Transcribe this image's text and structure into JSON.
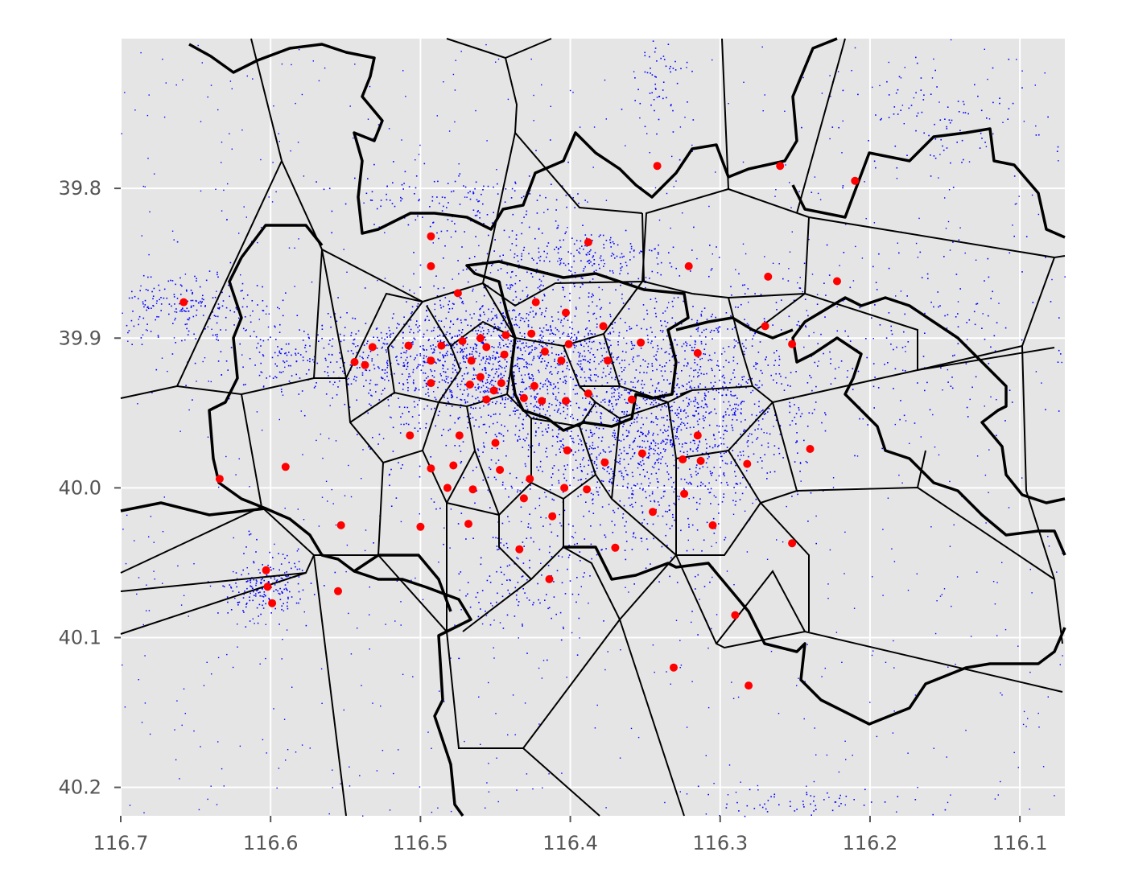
{
  "chart_data": {
    "type": "scatter",
    "title": "",
    "xlabel": "",
    "ylabel": "",
    "x_axis": {
      "ticks": [
        116.7,
        116.6,
        116.5,
        116.4,
        116.3,
        116.2,
        116.1
      ],
      "range": [
        116.7,
        116.07
      ],
      "reversed": true
    },
    "y_axis": {
      "ticks": [
        39.8,
        39.9,
        40.0,
        40.1,
        40.2
      ],
      "range": [
        39.7,
        40.219
      ],
      "inverted": true
    },
    "grid": true,
    "background": "#e5e5e5",
    "series": [
      {
        "marker": "small-dot",
        "color": "#0000ff",
        "points": []
      },
      {
        "marker": "circle",
        "color": "#ff0000",
        "points": [
          [
            116.342,
            39.785
          ],
          [
            116.26,
            39.785
          ],
          [
            116.21,
            39.795
          ],
          [
            116.493,
            39.832
          ],
          [
            116.388,
            39.836
          ],
          [
            116.493,
            39.852
          ],
          [
            116.321,
            39.852
          ],
          [
            116.268,
            39.859
          ],
          [
            116.222,
            39.862
          ],
          [
            116.475,
            39.87
          ],
          [
            116.658,
            39.876
          ],
          [
            116.423,
            39.876
          ],
          [
            116.403,
            39.883
          ],
          [
            116.378,
            39.892
          ],
          [
            116.27,
            39.892
          ],
          [
            116.426,
            39.897
          ],
          [
            116.443,
            39.898
          ],
          [
            116.46,
            39.9
          ],
          [
            116.472,
            39.902
          ],
          [
            116.486,
            39.905
          ],
          [
            116.508,
            39.905
          ],
          [
            116.532,
            39.906
          ],
          [
            116.456,
            39.906
          ],
          [
            116.444,
            39.911
          ],
          [
            116.417,
            39.909
          ],
          [
            116.401,
            39.904
          ],
          [
            116.353,
            39.903
          ],
          [
            116.315,
            39.91
          ],
          [
            116.252,
            39.904
          ],
          [
            116.466,
            39.915
          ],
          [
            116.544,
            39.916
          ],
          [
            116.537,
            39.918
          ],
          [
            116.493,
            39.915
          ],
          [
            116.406,
            39.915
          ],
          [
            116.375,
            39.915
          ],
          [
            116.46,
            39.926
          ],
          [
            116.446,
            39.93
          ],
          [
            116.467,
            39.931
          ],
          [
            116.493,
            39.93
          ],
          [
            116.424,
            39.932
          ],
          [
            116.451,
            39.935
          ],
          [
            116.431,
            39.94
          ],
          [
            116.388,
            39.937
          ],
          [
            116.456,
            39.941
          ],
          [
            116.419,
            39.942
          ],
          [
            116.403,
            39.942
          ],
          [
            116.359,
            39.941
          ],
          [
            116.507,
            39.965
          ],
          [
            116.474,
            39.965
          ],
          [
            116.45,
            39.97
          ],
          [
            116.315,
            39.965
          ],
          [
            116.24,
            39.974
          ],
          [
            116.402,
            39.975
          ],
          [
            116.352,
            39.977
          ],
          [
            116.325,
            39.981
          ],
          [
            116.313,
            39.982
          ],
          [
            116.377,
            39.983
          ],
          [
            116.282,
            39.984
          ],
          [
            116.59,
            39.986
          ],
          [
            116.493,
            39.987
          ],
          [
            116.478,
            39.985
          ],
          [
            116.447,
            39.988
          ],
          [
            116.634,
            39.994
          ],
          [
            116.427,
            39.994
          ],
          [
            116.482,
            40.0
          ],
          [
            116.465,
            40.001
          ],
          [
            116.404,
            40.0
          ],
          [
            116.389,
            40.001
          ],
          [
            116.324,
            40.004
          ],
          [
            116.431,
            40.007
          ],
          [
            116.345,
            40.016
          ],
          [
            116.412,
            40.019
          ],
          [
            116.468,
            40.024
          ],
          [
            116.553,
            40.025
          ],
          [
            116.305,
            40.025
          ],
          [
            116.5,
            40.026
          ],
          [
            116.252,
            40.037
          ],
          [
            116.37,
            40.04
          ],
          [
            116.434,
            40.041
          ],
          [
            116.603,
            40.055
          ],
          [
            116.414,
            40.061
          ],
          [
            116.602,
            40.066
          ],
          [
            116.555,
            40.069
          ],
          [
            116.599,
            40.077
          ],
          [
            116.29,
            40.085
          ],
          [
            116.331,
            40.12
          ],
          [
            116.281,
            40.132
          ]
        ]
      }
    ]
  }
}
